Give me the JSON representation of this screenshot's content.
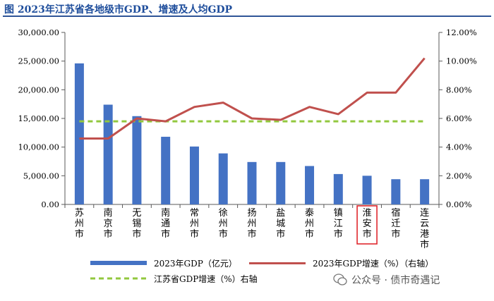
{
  "figure_title": "图   2023年江苏省各地级市GDP、增速及人均GDP",
  "chart_data": {
    "type": "bar",
    "categories": [
      "苏州市",
      "南京市",
      "无锡市",
      "南通市",
      "常州市",
      "徐州市",
      "扬州市",
      "盐城市",
      "泰州市",
      "镇江市",
      "淮安市",
      "宿迁市",
      "连云港市"
    ],
    "series": [
      {
        "name": "2023年GDP（亿元）",
        "type": "bar",
        "axis": "left",
        "color": "#4472c4",
        "values": [
          24600,
          17400,
          15400,
          11800,
          10100,
          8900,
          7400,
          7400,
          6700,
          5300,
          5000,
          4400,
          4400
        ]
      },
      {
        "name": "2023年GDP增速（%）（右轴）",
        "type": "line",
        "axis": "right",
        "color": "#c0504d",
        "values": [
          4.6,
          4.6,
          6.0,
          5.8,
          6.8,
          7.1,
          6.0,
          5.9,
          6.8,
          6.3,
          7.8,
          7.8,
          10.2
        ]
      },
      {
        "name": "江苏省GDP增速（%）右轴",
        "type": "line-dashed",
        "axis": "right",
        "color": "#92c83e",
        "values": [
          5.8,
          5.8,
          5.8,
          5.8,
          5.8,
          5.8,
          5.8,
          5.8,
          5.8,
          5.8,
          5.8,
          5.8,
          5.8
        ]
      }
    ],
    "ylim_left": [
      0,
      30000
    ],
    "yticks_left": [
      "0.00",
      "5,000.00",
      "10,000.00",
      "15,000.00",
      "20,000.00",
      "25,000.00",
      "30,000.00"
    ],
    "ylim_right": [
      0,
      12
    ],
    "yticks_right": [
      "0.00%",
      "2.00%",
      "4.00%",
      "6.00%",
      "8.00%",
      "10.00%",
      "12.00%"
    ],
    "highlighted_category": "淮安市",
    "highlight_color": "#e0282e",
    "grid": false,
    "legend_position": "bottom"
  },
  "watermark": "公众号 · 债市奇遇记"
}
